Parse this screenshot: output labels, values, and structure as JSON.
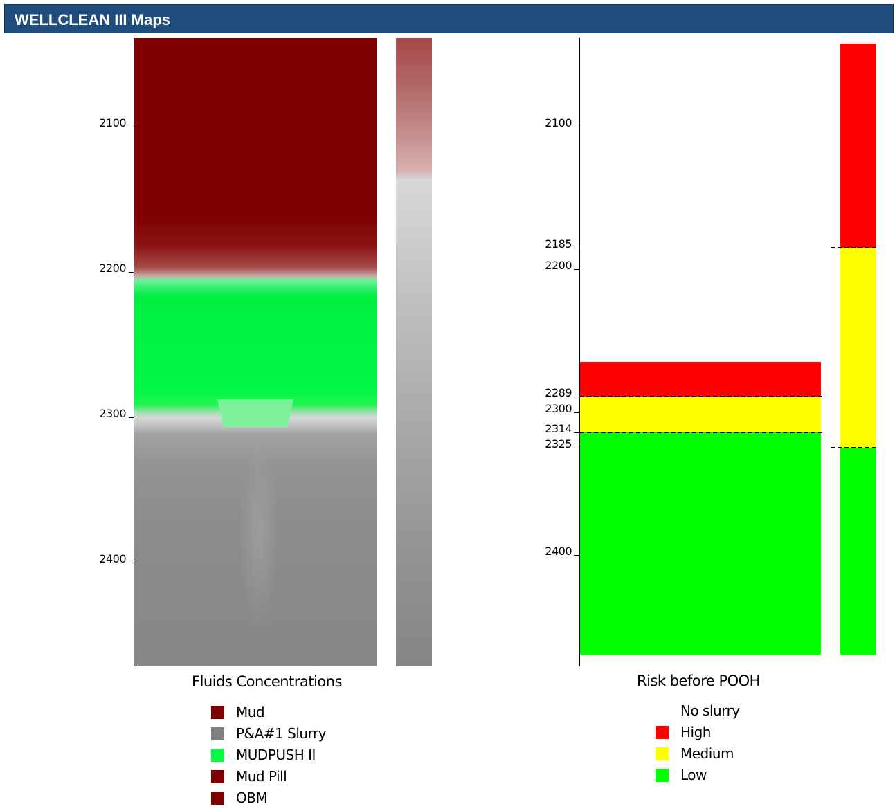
{
  "window": {
    "title": "WELLCLEAN III Maps"
  },
  "chart_data": [
    {
      "type": "heatmap",
      "title": "Fluids Concentrations",
      "y_ticks": [
        2100,
        2200,
        2300,
        2400
      ],
      "legend": [
        {
          "label": "Mud",
          "color": "#7f0000"
        },
        {
          "label": "P&A#1 Slurry",
          "color": "#808080"
        },
        {
          "label": "MUDPUSH II",
          "color": "#00ff40"
        },
        {
          "label": "Mud Pill",
          "color": "#7f0000"
        },
        {
          "label": "OBM",
          "color": "#7f0000"
        }
      ],
      "zones": [
        {
          "fluid": "Mud",
          "top": 2042,
          "bottom": 2200
        },
        {
          "fluid": "MUDPUSH II",
          "top": 2200,
          "bottom": 2295
        },
        {
          "fluid": "P&A#1 Slurry",
          "top": 2295,
          "bottom": 2470
        }
      ],
      "ylim": [
        2042,
        2470
      ],
      "grid": false
    },
    {
      "type": "bar",
      "title": "Risk before POOH",
      "y_ticks": [
        2100,
        2185,
        2200,
        2289,
        2300,
        2314,
        2325,
        2400
      ],
      "legend": [
        {
          "label": "No slurry",
          "color": ""
        },
        {
          "label": "High",
          "color": "#ff0000"
        },
        {
          "label": "Medium",
          "color": "#ffff00"
        },
        {
          "label": "Low",
          "color": "#00ff00"
        }
      ],
      "main_column": [
        {
          "risk": "High",
          "top": 2265,
          "bottom": 2289
        },
        {
          "risk": "Medium",
          "top": 2289,
          "bottom": 2314
        },
        {
          "risk": "Low",
          "top": 2314,
          "bottom": 2470
        }
      ],
      "side_column": [
        {
          "risk": "High",
          "top": 2042,
          "bottom": 2185
        },
        {
          "risk": "Medium",
          "top": 2185,
          "bottom": 2325
        },
        {
          "risk": "Low",
          "top": 2325,
          "bottom": 2470
        }
      ],
      "dashed_lines": [
        2185,
        2289,
        2314,
        2325
      ],
      "ylim": [
        2042,
        2470
      ],
      "grid": false
    }
  ]
}
